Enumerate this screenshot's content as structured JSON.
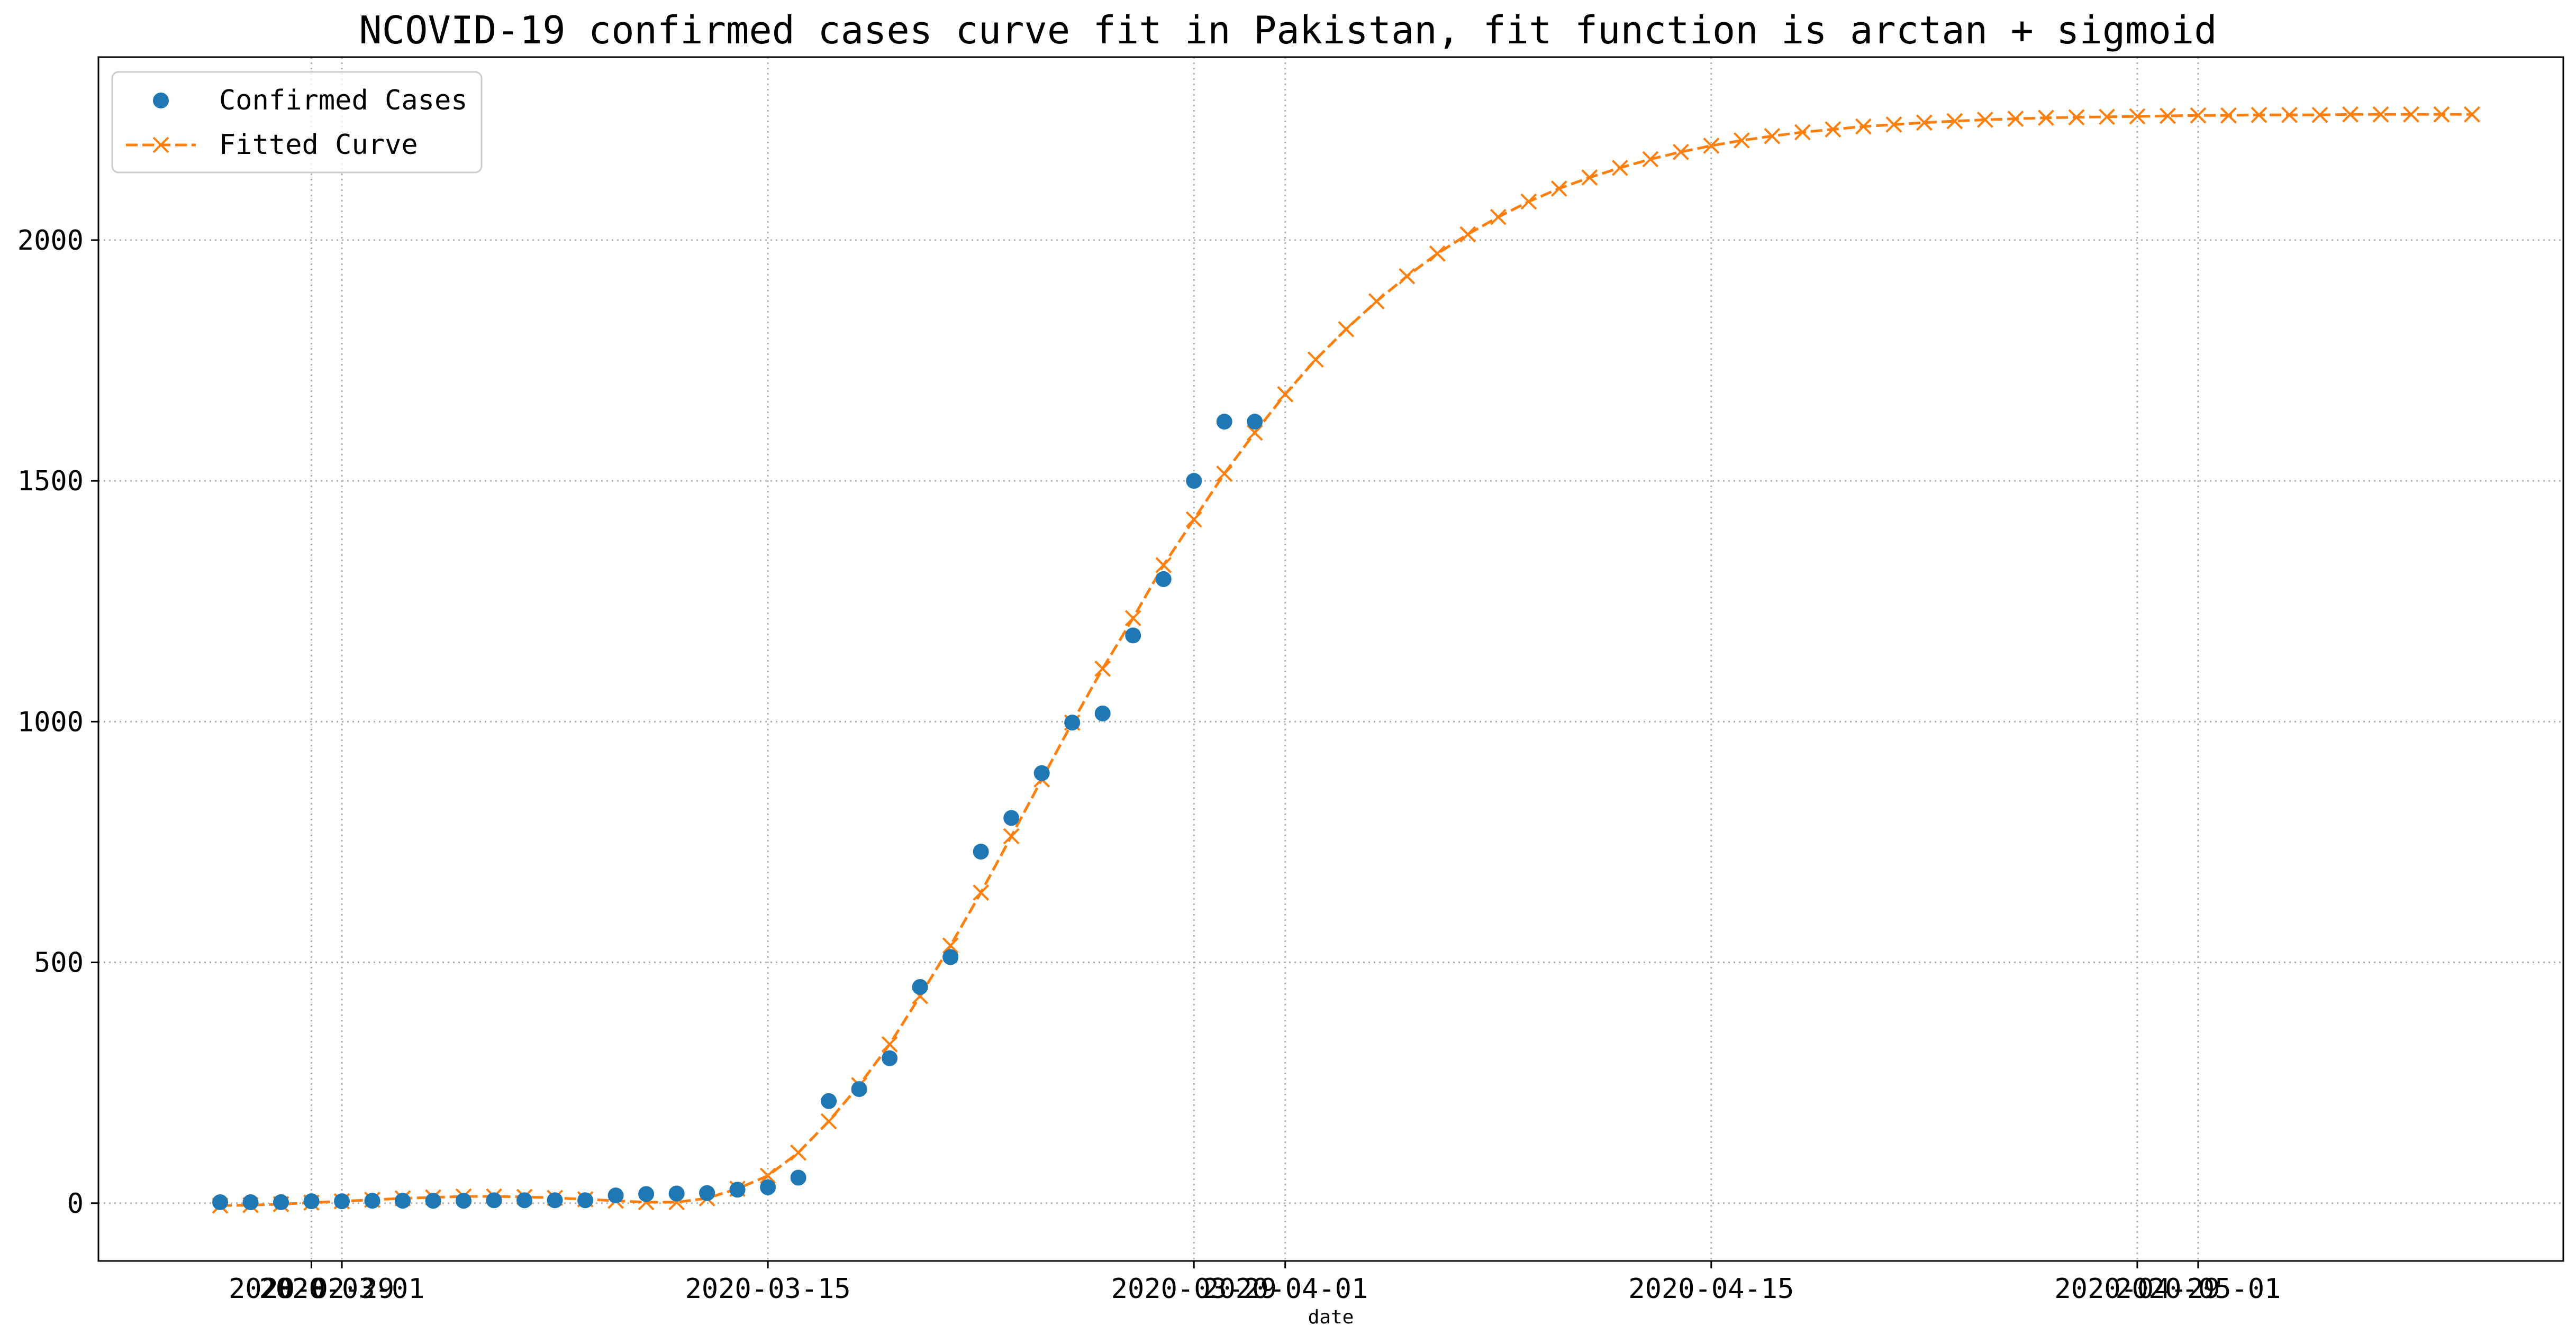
{
  "chart_data": {
    "type": "line",
    "title": "NCOVID-19 confirmed cases curve fit in Pakistan, fit function is arctan + sigmoid",
    "xlabel": "date",
    "ylabel": "",
    "grid": true,
    "legend_position": "top-left",
    "ylim": [
      -120,
      2380
    ],
    "xlim": [
      "2020-02-22",
      "2020-05-13"
    ],
    "yticks": [
      0,
      500,
      1000,
      1500,
      2000
    ],
    "ytick_labels": [
      "0",
      "500",
      "1000",
      "1500",
      "2000"
    ],
    "xticks": [
      "2020-02-29",
      "2020-03-01",
      "2020-03-15",
      "2020-03-29",
      "2020-04-01",
      "2020-04-15",
      "2020-04-29",
      "2020-05-01"
    ],
    "xtick_labels": [
      "2020-02-29",
      "2020-03-01",
      "2020-03-15",
      "2020-03-29",
      "2020-04-01",
      "2020-04-15",
      "2020-04-29",
      "2020-05-01"
    ],
    "series": [
      {
        "name": "Confirmed Cases",
        "style": "markers",
        "marker": "circle",
        "color": "#1f77b4",
        "x": [
          "2020-02-26",
          "2020-02-27",
          "2020-02-28",
          "2020-02-29",
          "2020-03-01",
          "2020-03-02",
          "2020-03-03",
          "2020-03-04",
          "2020-03-05",
          "2020-03-06",
          "2020-03-07",
          "2020-03-08",
          "2020-03-09",
          "2020-03-10",
          "2020-03-11",
          "2020-03-12",
          "2020-03-13",
          "2020-03-14",
          "2020-03-15",
          "2020-03-16",
          "2020-03-17",
          "2020-03-18",
          "2020-03-19",
          "2020-03-20",
          "2020-03-21",
          "2020-03-22",
          "2020-03-23",
          "2020-03-24",
          "2020-03-25",
          "2020-03-26",
          "2020-03-27",
          "2020-03-28",
          "2020-03-29",
          "2020-03-30",
          "2020-03-31"
        ],
        "y": [
          2,
          2,
          2,
          4,
          4,
          5,
          5,
          5,
          5,
          6,
          6,
          6,
          6,
          16,
          19,
          20,
          21,
          28,
          33,
          53,
          212,
          237,
          301,
          449,
          511,
          730,
          800,
          893,
          998,
          1017,
          1179,
          1296,
          1500,
          1623,
          1623
        ]
      },
      {
        "name": "Fitted Curve",
        "style": "dashed-line-markers",
        "marker": "x",
        "color": "#ff7f0e",
        "x": [
          "2020-02-26",
          "2020-02-27",
          "2020-02-28",
          "2020-02-29",
          "2020-03-01",
          "2020-03-02",
          "2020-03-03",
          "2020-03-04",
          "2020-03-05",
          "2020-03-06",
          "2020-03-07",
          "2020-03-08",
          "2020-03-09",
          "2020-03-10",
          "2020-03-11",
          "2020-03-12",
          "2020-03-13",
          "2020-03-14",
          "2020-03-15",
          "2020-03-16",
          "2020-03-17",
          "2020-03-18",
          "2020-03-19",
          "2020-03-20",
          "2020-03-21",
          "2020-03-22",
          "2020-03-23",
          "2020-03-24",
          "2020-03-25",
          "2020-03-26",
          "2020-03-27",
          "2020-03-28",
          "2020-03-29",
          "2020-03-30",
          "2020-03-31",
          "2020-04-01",
          "2020-04-02",
          "2020-04-03",
          "2020-04-04",
          "2020-04-05",
          "2020-04-06",
          "2020-04-07",
          "2020-04-08",
          "2020-04-09",
          "2020-04-10",
          "2020-04-11",
          "2020-04-12",
          "2020-04-13",
          "2020-04-14",
          "2020-04-15",
          "2020-04-16",
          "2020-04-17",
          "2020-04-18",
          "2020-04-19",
          "2020-04-20",
          "2020-04-21",
          "2020-04-22",
          "2020-04-23",
          "2020-04-24",
          "2020-04-25",
          "2020-04-26",
          "2020-04-27",
          "2020-04-28",
          "2020-04-29",
          "2020-04-30",
          "2020-05-01",
          "2020-05-02",
          "2020-05-03",
          "2020-05-04",
          "2020-05-05",
          "2020-05-06",
          "2020-05-07",
          "2020-05-08",
          "2020-05-09",
          "2020-05-10"
        ],
        "y": [
          -5,
          -4,
          -2,
          1,
          4,
          7,
          10,
          12,
          14,
          14,
          13,
          11,
          8,
          5,
          2,
          2,
          10,
          30,
          57,
          105,
          170,
          245,
          330,
          430,
          535,
          645,
          762,
          880,
          998,
          1110,
          1215,
          1325,
          1420,
          1515,
          1600,
          1680,
          1752,
          1815,
          1873,
          1925,
          1972,
          2012,
          2048,
          2080,
          2107,
          2130,
          2150,
          2168,
          2183,
          2196,
          2207,
          2216,
          2224,
          2230,
          2236,
          2240,
          2244,
          2247,
          2250,
          2252,
          2254,
          2255,
          2256,
          2257,
          2258,
          2259,
          2259,
          2260,
          2260,
          2260,
          2261,
          2261,
          2261,
          2261,
          2261
        ]
      }
    ]
  }
}
